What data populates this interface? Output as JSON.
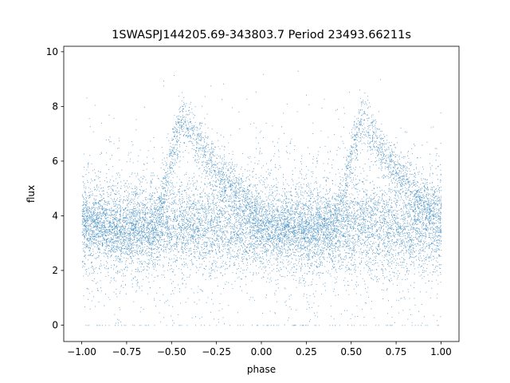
{
  "chart_data": {
    "type": "scatter",
    "title": "1SWASPJ144205.69-343803.7 Period 23493.66211s",
    "xlabel": "phase",
    "ylabel": "flux",
    "xlim": [
      -1.1,
      1.1
    ],
    "ylim": [
      -0.6,
      10.2
    ],
    "x_ticks": [
      -1.0,
      -0.75,
      -0.5,
      -0.25,
      0.0,
      0.25,
      0.5,
      0.75,
      1.0
    ],
    "x_tick_labels": [
      "−1.00",
      "−0.75",
      "−0.50",
      "−0.25",
      "0.00",
      "0.25",
      "0.50",
      "0.75",
      "1.00"
    ],
    "y_ticks": [
      0,
      2,
      4,
      6,
      8,
      10
    ],
    "y_tick_labels": [
      "0",
      "2",
      "4",
      "6",
      "8",
      "10"
    ],
    "grid": false,
    "legend": "none",
    "marker_color": "#1f77b4",
    "series": [
      {
        "phase_range": [
          -1.0,
          1.0
        ],
        "point_density": "very dense (tens of thousands of points)",
        "flux_range": [
          0.0,
          9.7
        ],
        "baseline_mean_flux": 3.6,
        "baseline_flux_band": [
          2.0,
          5.5
        ],
        "eclipse_like_peak_phases": [
          -0.44,
          0.56
        ],
        "peak_flux": 7.6,
        "profile": [
          {
            "phase": -1.0,
            "mean_flux": 3.8
          },
          {
            "phase": -0.8,
            "mean_flux": 3.5
          },
          {
            "phase": -0.6,
            "mean_flux": 3.5
          },
          {
            "phase": -0.55,
            "mean_flux": 4.5
          },
          {
            "phase": -0.5,
            "mean_flux": 6.3
          },
          {
            "phase": -0.44,
            "mean_flux": 7.6
          },
          {
            "phase": -0.35,
            "mean_flux": 6.6
          },
          {
            "phase": -0.25,
            "mean_flux": 5.6
          },
          {
            "phase": -0.1,
            "mean_flux": 4.6
          },
          {
            "phase": 0.0,
            "mean_flux": 3.6
          },
          {
            "phase": 0.2,
            "mean_flux": 3.5
          },
          {
            "phase": 0.4,
            "mean_flux": 3.5
          },
          {
            "phase": 0.45,
            "mean_flux": 4.5
          },
          {
            "phase": 0.5,
            "mean_flux": 6.3
          },
          {
            "phase": 0.56,
            "mean_flux": 7.6
          },
          {
            "phase": 0.65,
            "mean_flux": 6.6
          },
          {
            "phase": 0.75,
            "mean_flux": 5.6
          },
          {
            "phase": 0.9,
            "mean_flux": 4.6
          },
          {
            "phase": 1.0,
            "mean_flux": 3.8
          }
        ]
      }
    ]
  }
}
